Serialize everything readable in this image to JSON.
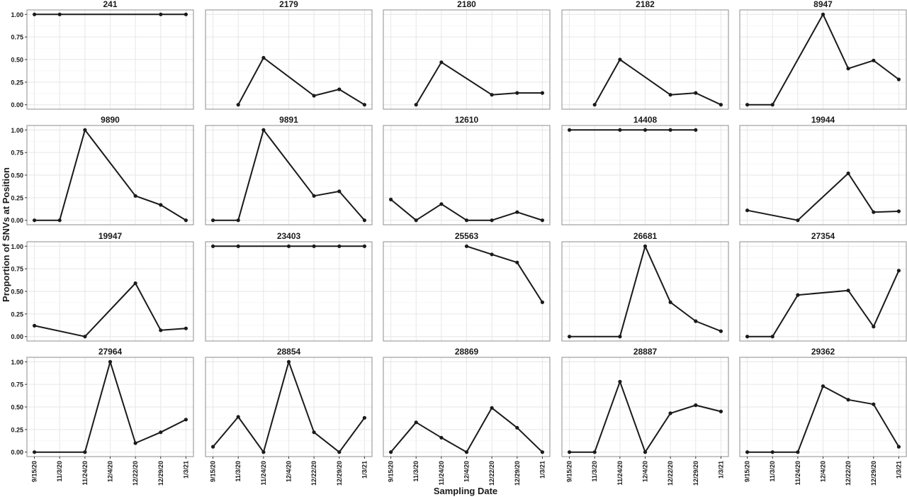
{
  "figure": {
    "ylabel": "Proportion of SNVs at Position",
    "xlabel": "Sampling Date"
  },
  "chart_data": {
    "type": "line",
    "facets": true,
    "layout": "4x5",
    "grid": true,
    "ylim": [
      0,
      1
    ],
    "yticks": [
      "0.00",
      "0.25",
      "0.50",
      "0.75",
      "1.00"
    ],
    "categories": [
      "9/15/20",
      "11/3/20",
      "11/24/20",
      "12/4/20",
      "12/22/20",
      "12/29/20",
      "1/3/21"
    ],
    "series_color": "#1a1a1a",
    "panel_border": "#8c8c8c",
    "grid_color": "#e6e6e6",
    "panels": [
      {
        "title": "241",
        "values": [
          1.0,
          1.0,
          null,
          null,
          null,
          1.0,
          1.0
        ]
      },
      {
        "title": "2179",
        "values": [
          null,
          0.0,
          0.52,
          null,
          0.1,
          0.17,
          0.0
        ]
      },
      {
        "title": "2180",
        "values": [
          null,
          0.0,
          0.47,
          null,
          0.11,
          0.13,
          0.13
        ]
      },
      {
        "title": "2182",
        "values": [
          null,
          0.0,
          0.5,
          null,
          0.11,
          0.13,
          0.0
        ]
      },
      {
        "title": "8947",
        "values": [
          0.0,
          0.0,
          null,
          1.0,
          0.4,
          0.49,
          0.28
        ]
      },
      {
        "title": "9890",
        "values": [
          0.0,
          0.0,
          1.0,
          null,
          0.27,
          0.17,
          0.0
        ]
      },
      {
        "title": "9891",
        "values": [
          0.0,
          0.0,
          1.0,
          null,
          0.27,
          0.32,
          0.0
        ]
      },
      {
        "title": "12610",
        "values": [
          0.23,
          0.0,
          0.18,
          0.0,
          0.0,
          0.09,
          0.0
        ]
      },
      {
        "title": "14408",
        "values": [
          1.0,
          null,
          1.0,
          1.0,
          1.0,
          1.0,
          null
        ]
      },
      {
        "title": "19944",
        "values": [
          0.11,
          null,
          0.0,
          null,
          0.52,
          0.09,
          0.1
        ]
      },
      {
        "title": "19947",
        "values": [
          0.12,
          null,
          0.0,
          null,
          0.59,
          0.07,
          0.09
        ]
      },
      {
        "title": "23403",
        "values": [
          1.0,
          1.0,
          null,
          1.0,
          1.0,
          1.0,
          1.0
        ]
      },
      {
        "title": "25563",
        "values": [
          null,
          null,
          null,
          1.0,
          0.91,
          0.82,
          0.38
        ]
      },
      {
        "title": "26681",
        "values": [
          0.0,
          null,
          0.0,
          1.0,
          0.38,
          0.17,
          0.06
        ]
      },
      {
        "title": "27354",
        "values": [
          0.0,
          0.0,
          0.46,
          null,
          0.51,
          0.11,
          0.73
        ]
      },
      {
        "title": "27964",
        "values": [
          0.0,
          null,
          0.0,
          1.0,
          0.1,
          0.22,
          0.36
        ]
      },
      {
        "title": "28854",
        "values": [
          0.06,
          0.39,
          0.0,
          1.0,
          0.22,
          0.0,
          0.38
        ]
      },
      {
        "title": "28869",
        "values": [
          0.0,
          0.33,
          0.16,
          0.0,
          0.49,
          0.27,
          0.0
        ]
      },
      {
        "title": "28887",
        "values": [
          0.0,
          0.0,
          0.78,
          0.0,
          0.43,
          0.52,
          0.45
        ]
      },
      {
        "title": "29362",
        "values": [
          0.0,
          0.0,
          0.0,
          0.73,
          0.58,
          0.53,
          0.06
        ]
      }
    ]
  }
}
